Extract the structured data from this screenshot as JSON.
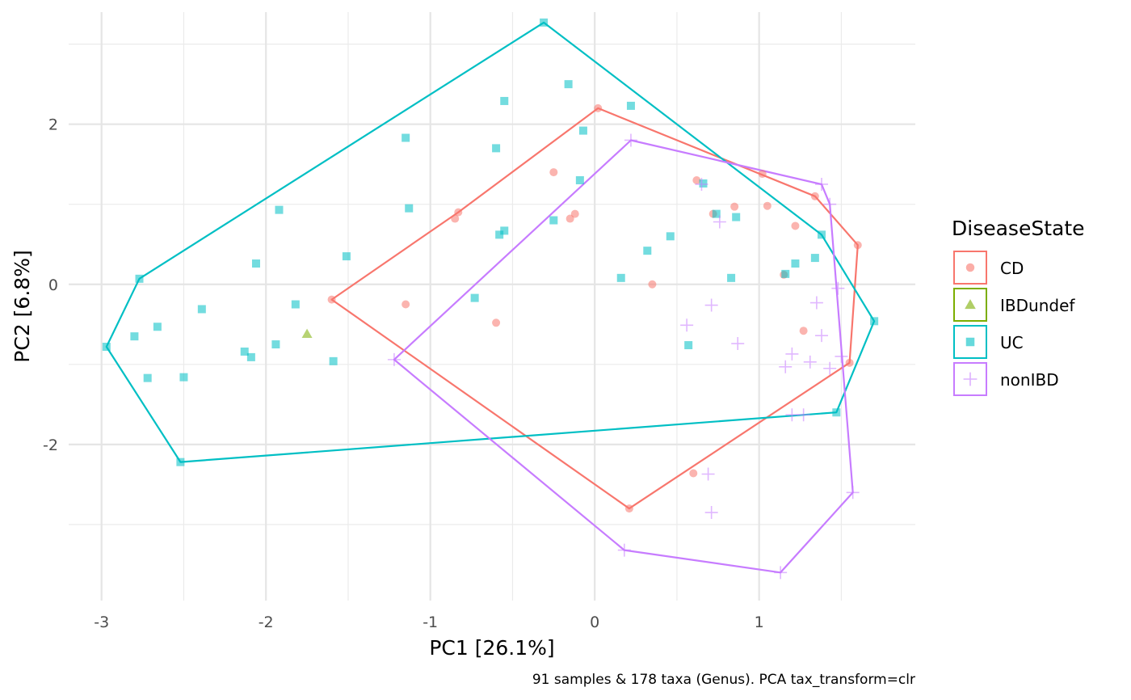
{
  "chart_data": {
    "type": "scatter",
    "xlabel": "PC1 [26.1%]",
    "ylabel": "PC2 [6.8%]",
    "caption": "91 samples & 178 taxa (Genus). PCA tax_transform=clr",
    "xlim": [
      -3.2,
      1.95
    ],
    "ylim": [
      -3.95,
      3.4
    ],
    "x_ticks": [
      -3,
      -2,
      -1,
      0,
      1
    ],
    "y_ticks": [
      -2,
      0,
      2
    ],
    "grid": true,
    "legend": {
      "title": "DiseaseState",
      "placement": "right"
    },
    "series": [
      {
        "name": "CD",
        "color": "#F8766D",
        "marker": "circle",
        "points": [
          [
            0.02,
            2.2
          ],
          [
            -0.25,
            1.4
          ],
          [
            0.62,
            1.3
          ],
          [
            1.02,
            1.38
          ],
          [
            0.72,
            0.88
          ],
          [
            0.85,
            0.97
          ],
          [
            1.05,
            0.98
          ],
          [
            1.34,
            1.1
          ],
          [
            1.22,
            0.73
          ],
          [
            1.6,
            0.49
          ],
          [
            -0.83,
            0.9
          ],
          [
            -0.85,
            0.82
          ],
          [
            -0.12,
            0.88
          ],
          [
            -0.15,
            0.82
          ],
          [
            1.15,
            0.12
          ],
          [
            0.35,
            0.0
          ],
          [
            -1.15,
            -0.25
          ],
          [
            -0.6,
            -0.48
          ],
          [
            -1.6,
            -0.19
          ],
          [
            1.27,
            -0.58
          ],
          [
            1.55,
            -0.98
          ],
          [
            0.6,
            -2.36
          ],
          [
            0.21,
            -2.8
          ]
        ],
        "hull": [
          [
            0.02,
            2.2
          ],
          [
            1.34,
            1.1
          ],
          [
            1.6,
            0.49
          ],
          [
            1.55,
            -0.98
          ],
          [
            0.21,
            -2.8
          ],
          [
            -1.6,
            -0.19
          ],
          [
            -0.83,
            0.9
          ]
        ]
      },
      {
        "name": "IBDundef",
        "color": "#7CAE00",
        "marker": "triangle",
        "points": [
          [
            -1.75,
            -0.62
          ]
        ],
        "hull": []
      },
      {
        "name": "UC",
        "color": "#00BFC4",
        "marker": "square",
        "points": [
          [
            -0.31,
            3.27
          ],
          [
            -0.16,
            2.5
          ],
          [
            0.22,
            2.23
          ],
          [
            -0.55,
            2.29
          ],
          [
            -0.07,
            1.92
          ],
          [
            -1.15,
            1.83
          ],
          [
            -0.6,
            1.7
          ],
          [
            -0.09,
            1.3
          ],
          [
            0.66,
            1.26
          ],
          [
            -1.13,
            0.95
          ],
          [
            0.74,
            0.88
          ],
          [
            0.86,
            0.84
          ],
          [
            -0.25,
            0.8
          ],
          [
            -1.92,
            0.93
          ],
          [
            -0.55,
            0.67
          ],
          [
            -0.58,
            0.62
          ],
          [
            1.38,
            0.62
          ],
          [
            0.46,
            0.6
          ],
          [
            0.32,
            0.42
          ],
          [
            -1.51,
            0.35
          ],
          [
            1.34,
            0.33
          ],
          [
            1.22,
            0.26
          ],
          [
            -2.06,
            0.26
          ],
          [
            1.16,
            0.13
          ],
          [
            0.83,
            0.08
          ],
          [
            0.16,
            0.08
          ],
          [
            -2.77,
            0.07
          ],
          [
            -0.73,
            -0.17
          ],
          [
            -1.82,
            -0.25
          ],
          [
            -2.39,
            -0.31
          ],
          [
            1.7,
            -0.46
          ],
          [
            -2.66,
            -0.53
          ],
          [
            -2.8,
            -0.65
          ],
          [
            -1.94,
            -0.75
          ],
          [
            0.57,
            -0.76
          ],
          [
            -2.97,
            -0.78
          ],
          [
            -2.13,
            -0.84
          ],
          [
            -2.09,
            -0.91
          ],
          [
            -1.59,
            -0.96
          ],
          [
            -2.72,
            -1.17
          ],
          [
            -2.5,
            -1.16
          ],
          [
            1.47,
            -1.6
          ],
          [
            -2.52,
            -2.22
          ]
        ],
        "hull": [
          [
            -0.31,
            3.27
          ],
          [
            1.38,
            0.62
          ],
          [
            1.7,
            -0.46
          ],
          [
            1.47,
            -1.6
          ],
          [
            -2.52,
            -2.22
          ],
          [
            -2.97,
            -0.78
          ],
          [
            -2.77,
            0.07
          ]
        ]
      },
      {
        "name": "nonIBD",
        "color": "#C77CFF",
        "marker": "plus",
        "points": [
          [
            0.22,
            1.8
          ],
          [
            0.65,
            1.25
          ],
          [
            1.38,
            1.25
          ],
          [
            1.43,
            1.0
          ],
          [
            0.76,
            0.78
          ],
          [
            1.48,
            -0.05
          ],
          [
            1.35,
            -0.23
          ],
          [
            0.71,
            -0.26
          ],
          [
            0.56,
            -0.51
          ],
          [
            1.38,
            -0.64
          ],
          [
            0.87,
            -0.74
          ],
          [
            1.2,
            -0.87
          ],
          [
            1.5,
            -0.9
          ],
          [
            1.31,
            -0.97
          ],
          [
            1.16,
            -1.03
          ],
          [
            1.43,
            -1.05
          ],
          [
            1.27,
            -1.63
          ],
          [
            1.2,
            -1.63
          ],
          [
            0.69,
            -2.37
          ],
          [
            0.71,
            -2.85
          ],
          [
            1.57,
            -2.6
          ],
          [
            0.18,
            -3.32
          ],
          [
            1.13,
            -3.6
          ],
          [
            -1.22,
            -0.94
          ]
        ],
        "hull": [
          [
            0.22,
            1.8
          ],
          [
            1.38,
            1.25
          ],
          [
            1.43,
            1.0
          ],
          [
            1.57,
            -2.6
          ],
          [
            1.13,
            -3.6
          ],
          [
            0.18,
            -3.32
          ],
          [
            -1.22,
            -0.94
          ]
        ]
      }
    ]
  }
}
